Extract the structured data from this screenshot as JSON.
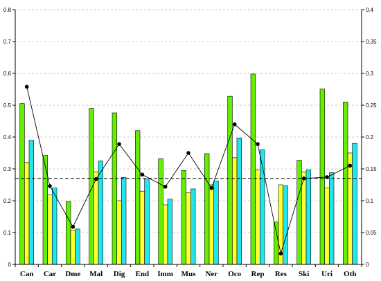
{
  "chart_data": {
    "type": "bar",
    "categories": [
      "Can",
      "Car",
      "Dme",
      "Mal",
      "Dig",
      "End",
      "Imm",
      "Mus",
      "Ner",
      "Oco",
      "Rep",
      "Res",
      "Ski",
      "Uri",
      "Oth"
    ],
    "series": [
      {
        "values": [
          0.505,
          0.342,
          0.197,
          0.49,
          0.476,
          0.42,
          0.332,
          0.295,
          0.348,
          0.528,
          0.598,
          0.133,
          0.327,
          0.551,
          0.51
        ],
        "color": "#66ee00",
        "axis": "left",
        "kind": "bar"
      },
      {
        "values": [
          0.32,
          0.218,
          0.107,
          0.291,
          0.2,
          0.23,
          0.187,
          0.225,
          0.25,
          0.335,
          0.297,
          0.25,
          0.291,
          0.24,
          0.35
        ],
        "color": "#ffff33",
        "axis": "left",
        "kind": "bar"
      },
      {
        "values": [
          0.39,
          0.24,
          0.111,
          0.325,
          0.273,
          0.268,
          0.205,
          0.237,
          0.262,
          0.397,
          0.36,
          0.247,
          0.297,
          0.288,
          0.38
        ],
        "color": "#22e6ee",
        "axis": "left",
        "kind": "bar"
      },
      {
        "values": [
          0.279,
          0.123,
          0.059,
          0.134,
          0.189,
          0.141,
          0.122,
          0.175,
          0.12,
          0.22,
          0.189,
          0.017,
          0.135,
          0.137,
          0.155
        ],
        "color": "#000000",
        "axis": "right",
        "kind": "line"
      }
    ],
    "reference_line": {
      "value": 0.27,
      "axis": "left",
      "style": "dashed"
    },
    "y_left": {
      "lim": [
        0,
        0.8
      ],
      "ticks": [
        "0",
        "0.1",
        "0.2",
        "0.3",
        "0.4",
        "0.5",
        "0.6",
        "0.7",
        "0.8"
      ]
    },
    "y_right": {
      "lim": [
        0,
        0.4
      ],
      "ticks": [
        "0",
        "0.05",
        "0.1",
        "0.15",
        "0.2",
        "0.25",
        "0.3",
        "0.35",
        "0.4"
      ]
    },
    "grid": "horizontal-dashed",
    "title": "",
    "xlabel": "",
    "ylabel": ""
  }
}
